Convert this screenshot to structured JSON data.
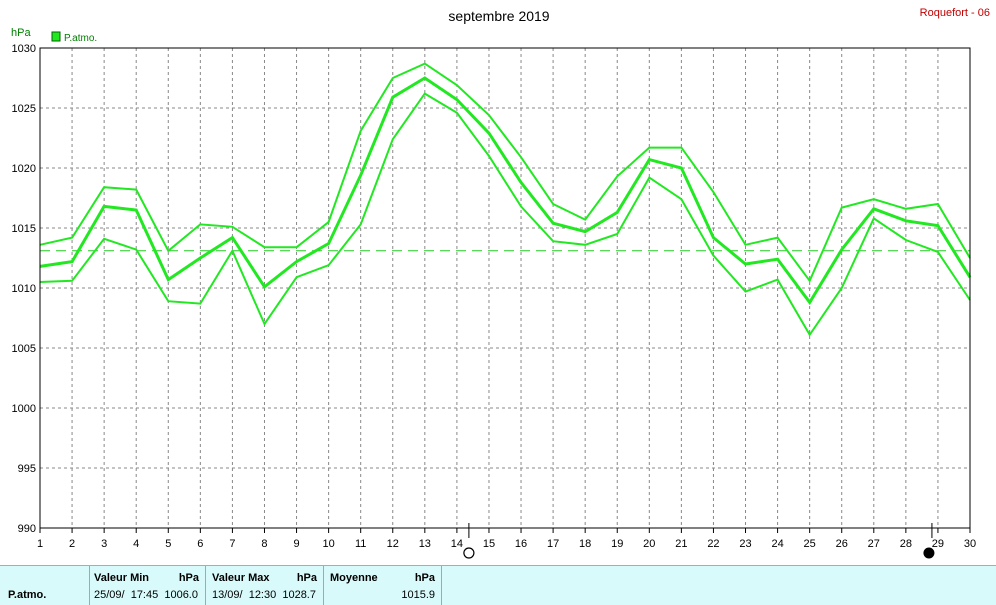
{
  "header": {
    "title": "septembre 2019",
    "station": "Roquefort - 06"
  },
  "chart_data": {
    "type": "line",
    "title": "septembre 2019",
    "ylabel": "hPa",
    "legend": "P.atmo.",
    "ylim": [
      990,
      1030
    ],
    "yticks": [
      990,
      995,
      1000,
      1005,
      1010,
      1015,
      1020,
      1025,
      1030
    ],
    "x": [
      1,
      2,
      3,
      4,
      5,
      6,
      7,
      8,
      9,
      10,
      11,
      12,
      13,
      14,
      15,
      16,
      17,
      18,
      19,
      20,
      21,
      22,
      23,
      24,
      25,
      26,
      27,
      28,
      29,
      30
    ],
    "average_line": 1013.1,
    "series": [
      {
        "name": "P.atmo.",
        "style": "max",
        "color": "#22e822",
        "values": [
          1013.6,
          1014.2,
          1018.4,
          1018.2,
          1013.1,
          1015.3,
          1015.1,
          1013.4,
          1013.4,
          1015.5,
          1023.1,
          1027.5,
          1028.7,
          1026.9,
          1024.4,
          1020.9,
          1017.0,
          1015.7,
          1019.3,
          1021.7,
          1021.7,
          1018.0,
          1013.6,
          1014.2,
          1010.6,
          1016.7,
          1017.4,
          1016.6,
          1017.0,
          1012.5
        ]
      },
      {
        "name": "P.atmo.",
        "style": "mean",
        "color": "#22e822",
        "values": [
          1011.8,
          1012.2,
          1016.8,
          1016.5,
          1010.7,
          1012.5,
          1014.2,
          1010.1,
          1012.2,
          1013.7,
          1019.4,
          1025.9,
          1027.5,
          1025.7,
          1022.9,
          1018.8,
          1015.4,
          1014.7,
          1016.3,
          1020.7,
          1020.0,
          1014.2,
          1012.0,
          1012.4,
          1008.8,
          1013.2,
          1016.6,
          1015.6,
          1015.2,
          1010.9
        ]
      },
      {
        "name": "P.atmo.",
        "style": "min",
        "color": "#22e822",
        "values": [
          1010.5,
          1010.6,
          1014.1,
          1013.2,
          1008.9,
          1008.7,
          1013.1,
          1007.0,
          1010.9,
          1011.9,
          1015.3,
          1022.4,
          1026.2,
          1024.6,
          1021.0,
          1016.8,
          1013.9,
          1013.6,
          1014.5,
          1019.2,
          1017.4,
          1012.7,
          1009.7,
          1010.7,
          1006.1,
          1010.0,
          1015.8,
          1014.0,
          1013.0,
          1009.0
        ]
      }
    ],
    "moon_phases": [
      {
        "x": 14,
        "phase": "full-moon-icon"
      },
      {
        "x": 29,
        "phase": "new-moon-icon"
      }
    ]
  },
  "footer": {
    "series_label": "P.atmo.",
    "min": {
      "header": "Valeur Min",
      "unit": "hPa",
      "value": "25/09/  17:45  1006.0"
    },
    "max": {
      "header": "Valeur Max",
      "unit": "hPa",
      "value": "13/09/  12:30  1028.7"
    },
    "mean": {
      "header": "Moyenne",
      "unit": "hPa",
      "value": "1015.9"
    }
  }
}
